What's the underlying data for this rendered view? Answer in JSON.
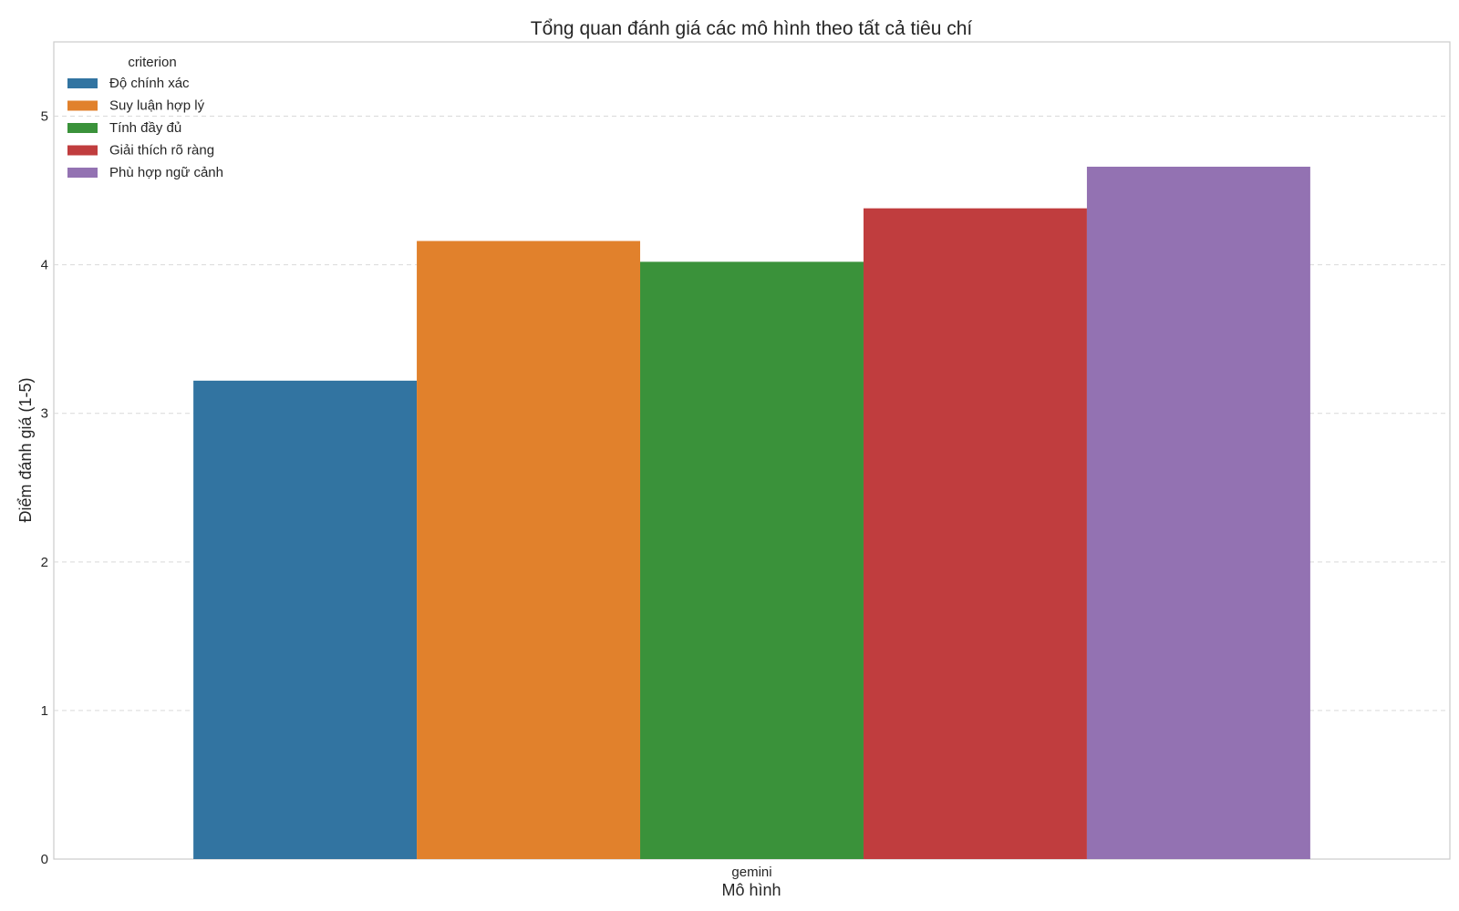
{
  "chart_data": {
    "type": "bar",
    "title": "Tổng quan đánh giá các mô hình theo tất cả tiêu chí",
    "xlabel": "Mô hình",
    "ylabel": "Điểm đánh giá (1-5)",
    "categories": [
      "gemini"
    ],
    "ylim": [
      0,
      5.5
    ],
    "yticks": [
      0,
      1,
      2,
      3,
      4,
      5
    ],
    "grid": true,
    "legend": {
      "title": "criterion",
      "placement": "top-left"
    },
    "series": [
      {
        "name": "Độ chính xác",
        "values": [
          3.22
        ],
        "color": "#3274a1"
      },
      {
        "name": "Suy luận hợp lý",
        "values": [
          4.16
        ],
        "color": "#e1812c"
      },
      {
        "name": "Tính đầy đủ",
        "values": [
          4.02
        ],
        "color": "#3a923a"
      },
      {
        "name": "Giải thích rõ ràng",
        "values": [
          4.38
        ],
        "color": "#c03d3e"
      },
      {
        "name": "Phù hợp ngữ cảnh",
        "values": [
          4.66
        ],
        "color": "#9372b2"
      }
    ]
  }
}
